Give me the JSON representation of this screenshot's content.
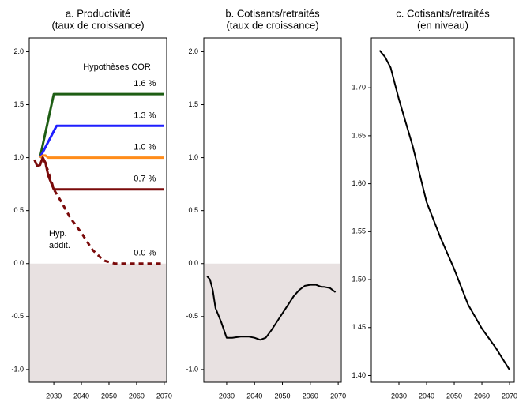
{
  "chart_data": [
    {
      "type": "line",
      "title": "a. Productivité",
      "subtitle": "(taux de croissance)",
      "xlim": [
        2021.1,
        2070.9
      ],
      "ylim": [
        -1.12,
        2.13
      ],
      "xticks": [
        2030,
        2040,
        2050,
        2060,
        2070
      ],
      "yticks": [
        {
          "value": -1,
          "label": "-1.0"
        },
        -0.5,
        {
          "value": 0,
          "label": "0.0"
        },
        0.5,
        {
          "value": 1,
          "label": "1.0"
        },
        1.5,
        {
          "value": 2,
          "label": "2.0"
        }
      ],
      "shade_below_zero": true,
      "annotations": [
        "Hypothèses COR",
        "Hyp.",
        "addit."
      ],
      "series": [
        {
          "name": "1.6 %",
          "color": "#1e5e14",
          "x": [
            2025,
            2030,
            2070
          ],
          "values": [
            1.0,
            1.6,
            1.6
          ]
        },
        {
          "name": "1.3 %",
          "color": "#1f1fff",
          "x": [
            2025,
            2031,
            2070
          ],
          "values": [
            1.0,
            1.3,
            1.3
          ]
        },
        {
          "name": "1.0 %",
          "color": "#ff8c1a",
          "x": [
            2025,
            2026,
            2027,
            2028,
            2070
          ],
          "values": [
            1.0,
            1.02,
            1.02,
            1.0,
            1.0
          ]
        },
        {
          "name": "0,7 %",
          "color": "#7a0a0a",
          "x": [
            2023,
            2024,
            2025,
            2026,
            2027,
            2028,
            2030,
            2070
          ],
          "values": [
            0.98,
            0.92,
            0.93,
            1.0,
            0.95,
            0.83,
            0.7,
            0.7
          ]
        },
        {
          "name": "0.0 %",
          "color": "#7a0a0a",
          "dashed": true,
          "x": [
            2026,
            2028,
            2030,
            2033,
            2036,
            2040,
            2044,
            2048,
            2052,
            2056,
            2060,
            2065,
            2070
          ],
          "values": [
            1.0,
            0.87,
            0.7,
            0.57,
            0.43,
            0.29,
            0.13,
            0.03,
            0.0,
            0.0,
            0.0,
            0.0,
            0.0
          ]
        }
      ]
    },
    {
      "type": "line",
      "title": "b. Cotisants/retraités",
      "subtitle": "(taux de croissance)",
      "xlim": [
        2021.8,
        2071.1
      ],
      "ylim": [
        -1.12,
        2.13
      ],
      "xticks": [
        2030,
        2040,
        2050,
        2060,
        2070
      ],
      "yticks": [
        {
          "value": -1,
          "label": "-1.0"
        },
        -0.5,
        {
          "value": 0,
          "label": "0.0"
        },
        0.5,
        {
          "value": 1,
          "label": "1.0"
        },
        1.5,
        {
          "value": 2,
          "label": "2.0"
        }
      ],
      "shade_below_zero": true,
      "series": [
        {
          "color": "#000000",
          "x": [
            2023,
            2024,
            2025,
            2026,
            2028,
            2030,
            2032,
            2035,
            2038,
            2040,
            2042,
            2044,
            2046,
            2048,
            2050,
            2052,
            2054,
            2056,
            2058,
            2060,
            2062,
            2064,
            2065,
            2067,
            2069
          ],
          "values": [
            -0.12,
            -0.15,
            -0.25,
            -0.42,
            -0.55,
            -0.7,
            -0.7,
            -0.69,
            -0.69,
            -0.7,
            -0.72,
            -0.7,
            -0.63,
            -0.55,
            -0.47,
            -0.39,
            -0.31,
            -0.25,
            -0.21,
            -0.2,
            -0.2,
            -0.22,
            -0.22,
            -0.23,
            -0.27
          ]
        }
      ]
    },
    {
      "type": "line",
      "title": "c. Cotisants/retraités",
      "subtitle": "(en niveau)",
      "xlim": [
        2020,
        2071.7
      ],
      "ylim": [
        1.393,
        1.752
      ],
      "xticks": [
        2030,
        2040,
        2050,
        2060,
        2070
      ],
      "yticks": [
        {
          "value": 1.4,
          "label": "1.40"
        },
        1.45,
        {
          "value": 1.5,
          "label": "1.50"
        },
        1.55,
        {
          "value": 1.6,
          "label": "1.60"
        },
        1.65,
        {
          "value": 1.7,
          "label": "1.70"
        }
      ],
      "shade_below_zero": false,
      "series": [
        {
          "color": "#000000",
          "x": [
            2023,
            2025,
            2027,
            2030,
            2035,
            2040,
            2045,
            2050,
            2055,
            2060,
            2065,
            2070
          ],
          "values": [
            1.739,
            1.732,
            1.721,
            1.688,
            1.639,
            1.581,
            1.544,
            1.511,
            1.474,
            1.449,
            1.429,
            1.406
          ]
        }
      ]
    }
  ]
}
